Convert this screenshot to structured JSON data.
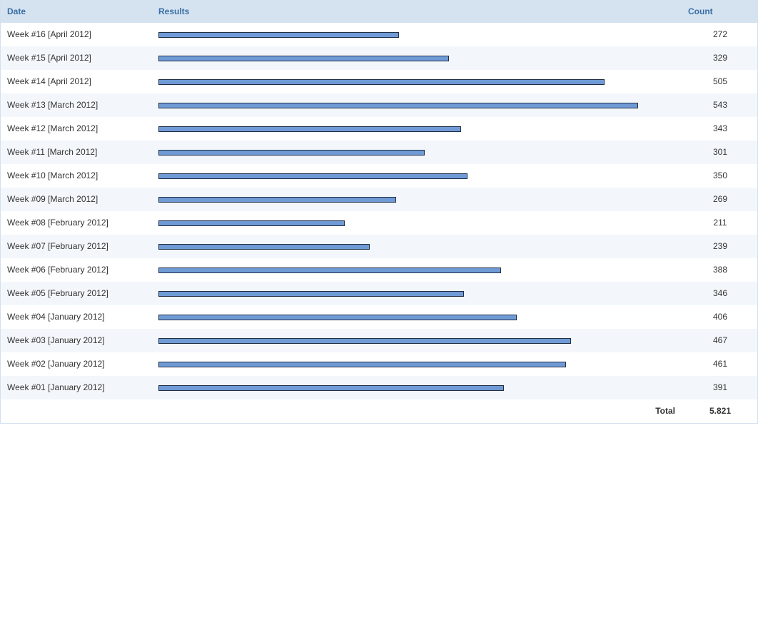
{
  "header": {
    "date_label": "Date",
    "results_label": "Results",
    "count_label": "Count"
  },
  "colors": {
    "bar_fill": "#6f9ad6",
    "bar_border": "#1f2f44",
    "header_bg": "#d5e3f1",
    "header_text": "#3a6ea5",
    "row_alt_bg": "#f3f7fb"
  },
  "chart_data": {
    "type": "bar",
    "orientation": "horizontal",
    "title": "",
    "xlabel": "",
    "ylabel": "",
    "categories": [
      "Week #16 [April 2012]",
      "Week #15 [April 2012]",
      "Week #14 [April 2012]",
      "Week #13 [March 2012]",
      "Week #12 [March 2012]",
      "Week #11 [March 2012]",
      "Week #10 [March 2012]",
      "Week #09 [March 2012]",
      "Week #08 [February 2012]",
      "Week #07 [February 2012]",
      "Week #06 [February 2012]",
      "Week #05 [February 2012]",
      "Week #04 [January 2012]",
      "Week #03 [January 2012]",
      "Week #02 [January 2012]",
      "Week #01 [January 2012]"
    ],
    "values": [
      272,
      329,
      505,
      543,
      343,
      301,
      350,
      269,
      211,
      239,
      388,
      346,
      406,
      467,
      461,
      391
    ],
    "xlim": [
      0,
      543
    ],
    "grid": false,
    "legend": "none"
  },
  "footer": {
    "total_label": "Total",
    "total_value": "5.821"
  }
}
